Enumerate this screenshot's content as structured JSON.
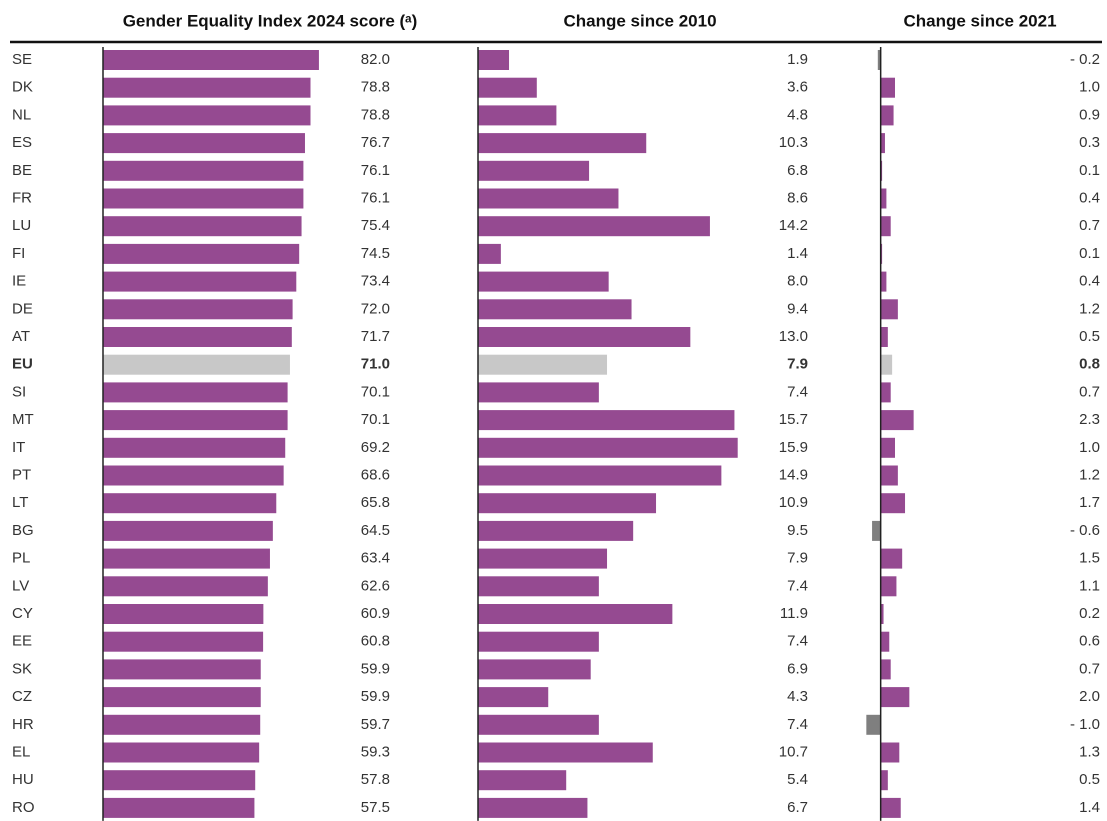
{
  "chart_data": {
    "type": "hbar-panels",
    "categories": [
      "SE",
      "DK",
      "NL",
      "ES",
      "BE",
      "FR",
      "LU",
      "FI",
      "IE",
      "DE",
      "AT",
      "EU",
      "SI",
      "MT",
      "IT",
      "PT",
      "LT",
      "BG",
      "PL",
      "LV",
      "CY",
      "EE",
      "SK",
      "CZ",
      "HR",
      "EL",
      "HU",
      "RO"
    ],
    "highlight": "EU",
    "highlight_color": "#c8c8c8",
    "negative_color": "#7f7f7f",
    "series": [
      {
        "name": "Gender Equality Index 2024 score (ᵃ)",
        "color": "#954a91",
        "xlim": [
          0,
          90
        ],
        "values": [
          82.0,
          78.8,
          78.8,
          76.7,
          76.1,
          76.1,
          75.4,
          74.5,
          73.4,
          72.0,
          71.7,
          71.0,
          70.1,
          70.1,
          69.2,
          68.6,
          65.8,
          64.5,
          63.4,
          62.6,
          60.9,
          60.8,
          59.9,
          59.9,
          59.7,
          59.3,
          57.8,
          57.5
        ],
        "value_labels": [
          "82.0",
          "78.8",
          "78.8",
          "76.7",
          "76.1",
          "76.1",
          "75.4",
          "74.5",
          "73.4",
          "72.0",
          "71.7",
          "71.0",
          "70.1",
          "70.1",
          "69.2",
          "68.6",
          "65.8",
          "64.5",
          "63.4",
          "62.6",
          "60.9",
          "60.8",
          "59.9",
          "59.9",
          "59.7",
          "59.3",
          "57.8",
          "57.5"
        ]
      },
      {
        "name": "Change since 2010",
        "color": "#954a91",
        "xlim": [
          0,
          18
        ],
        "values": [
          1.9,
          3.6,
          4.8,
          10.3,
          6.8,
          8.6,
          14.2,
          1.4,
          8.0,
          9.4,
          13.0,
          7.9,
          7.4,
          15.7,
          15.9,
          14.9,
          10.9,
          9.5,
          7.9,
          7.4,
          11.9,
          7.4,
          6.9,
          4.3,
          7.4,
          10.7,
          5.4,
          6.7
        ],
        "value_labels": [
          "1.9",
          "3.6",
          "4.8",
          "10.3",
          "6.8",
          "8.6",
          "14.2",
          "1.4",
          "8.0",
          "9.4",
          "13.0",
          "7.9",
          "7.4",
          "15.7",
          "15.9",
          "14.9",
          "10.9",
          "9.5",
          "7.9",
          "7.4",
          "11.9",
          "7.4",
          "6.9",
          "4.3",
          "7.4",
          "10.7",
          "5.4",
          "6.7"
        ]
      },
      {
        "name": "Change since 2021",
        "color": "#954a91",
        "xlim": [
          -2,
          10
        ],
        "values": [
          -0.2,
          1.0,
          0.9,
          0.3,
          0.1,
          0.4,
          0.7,
          0.1,
          0.4,
          1.2,
          0.5,
          0.8,
          0.7,
          2.3,
          1.0,
          1.2,
          1.7,
          -0.6,
          1.5,
          1.1,
          0.2,
          0.6,
          0.7,
          2.0,
          -1.0,
          1.3,
          0.5,
          1.4
        ],
        "value_labels": [
          "- 0.2",
          "1.0",
          "0.9",
          "0.3",
          "0.1",
          "0.4",
          "0.7",
          "0.1",
          "0.4",
          "1.2",
          "0.5",
          "0.8",
          "0.7",
          "2.3",
          "1.0",
          "1.2",
          "1.7",
          "- 0.6",
          "1.5",
          "1.1",
          "0.2",
          "0.6",
          "0.7",
          "2.0",
          "- 1.0",
          "1.3",
          "0.5",
          "1.4"
        ]
      }
    ]
  }
}
